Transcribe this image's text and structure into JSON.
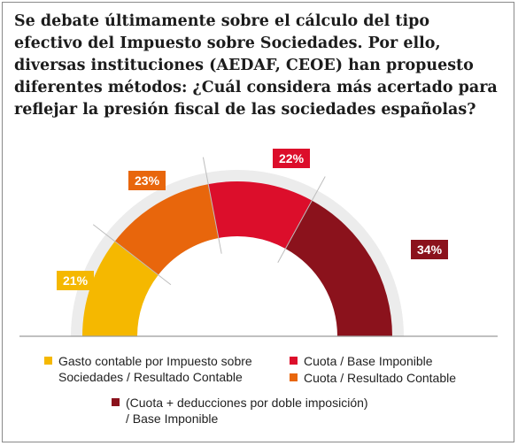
{
  "question": "Se debate últimamente sobre el cálculo del tipo efectivo del Impuesto sobre Sociedades. Por ello, diversas instituciones (AEDAF, CEOE) han propuesto diferentes métodos: ¿Cuál considera más acertado para reflejar la presión fiscal de las sociedades españolas?",
  "chart_data": {
    "type": "pie",
    "shape": "semicircle",
    "slices": [
      {
        "label": "Gasto contable por Impuesto sobre Sociedades / Resultado Contable",
        "value": 21,
        "value_label": "21%",
        "color": "#f5b800"
      },
      {
        "label": "Cuota / Resultado Contable",
        "value": 23,
        "value_label": "23%",
        "color": "#e8660c"
      },
      {
        "label": "Cuota / Base Imponible",
        "value": 22,
        "value_label": "22%",
        "color": "#dc0e2b"
      },
      {
        "label": "(Cuota + deducciones por doble imposición) / Base Imponible",
        "value": 34,
        "value_label": "34%",
        "color": "#8b121c"
      }
    ],
    "legend_position": "bottom"
  },
  "legend": {
    "item1_line1": "Gasto contable por Impuesto sobre",
    "item1_line2": "Sociedades / Resultado Contable",
    "item2": "Cuota / Base Imponible",
    "item3": "Cuota / Resultado Contable",
    "item4_line1": "(Cuota + deducciones por doble imposición)",
    "item4_line2": "/ Base Imponible"
  },
  "colors": {
    "track": "#ececec",
    "baseline": "#9a9a9a",
    "divider": "#bdbdbd"
  }
}
